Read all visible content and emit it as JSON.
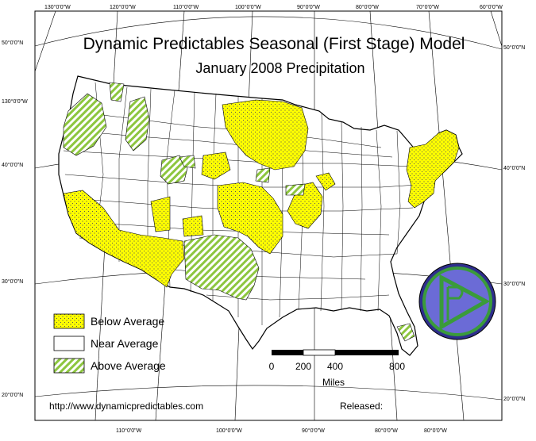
{
  "title": "Dynamic Predictables Seasonal (First Stage) Model",
  "subtitle": "January 2008 Precipitation",
  "graticule": {
    "top_labels": [
      "130°0'0\"W",
      "120°0'0\"W",
      "110°0'0\"W",
      "100°0'0\"W",
      "90°0'0\"W",
      "80°0'0\"W",
      "70°0'0\"W",
      "60°0'0\"W"
    ],
    "bottom_labels": [
      "110°0'0\"W",
      "100°0'0\"W",
      "90°0'0\"W",
      "80°0'0\"W",
      "80°0'0\"W"
    ],
    "left_labels": [
      "50°0'0\"N",
      "130°0'0\"W",
      "40°0'0\"N",
      "30°0'0\"N",
      "20°0'0\"N"
    ],
    "right_labels": [
      "50°0'0\"N",
      "40°0'0\"N",
      "30°0'0\"N",
      "20°0'0\"N"
    ]
  },
  "legend": {
    "items": [
      {
        "label": "Below Average",
        "swatch": "below"
      },
      {
        "label": "Near Average",
        "swatch": "near"
      },
      {
        "label": "Above Average",
        "swatch": "above"
      }
    ]
  },
  "scale_bar": {
    "ticks": [
      "0",
      "200",
      "400",
      "800"
    ],
    "unit": "Miles"
  },
  "footer": {
    "url": "http://www.dynamicpredictables.com",
    "released": "Released:"
  },
  "colors": {
    "below": "#ffff00",
    "above": "#8dc63f",
    "border": "#000000",
    "logo_outer": "#2e2e8c",
    "logo_inner": "#6b6bd6",
    "logo_ring": "#3a9b3a"
  }
}
